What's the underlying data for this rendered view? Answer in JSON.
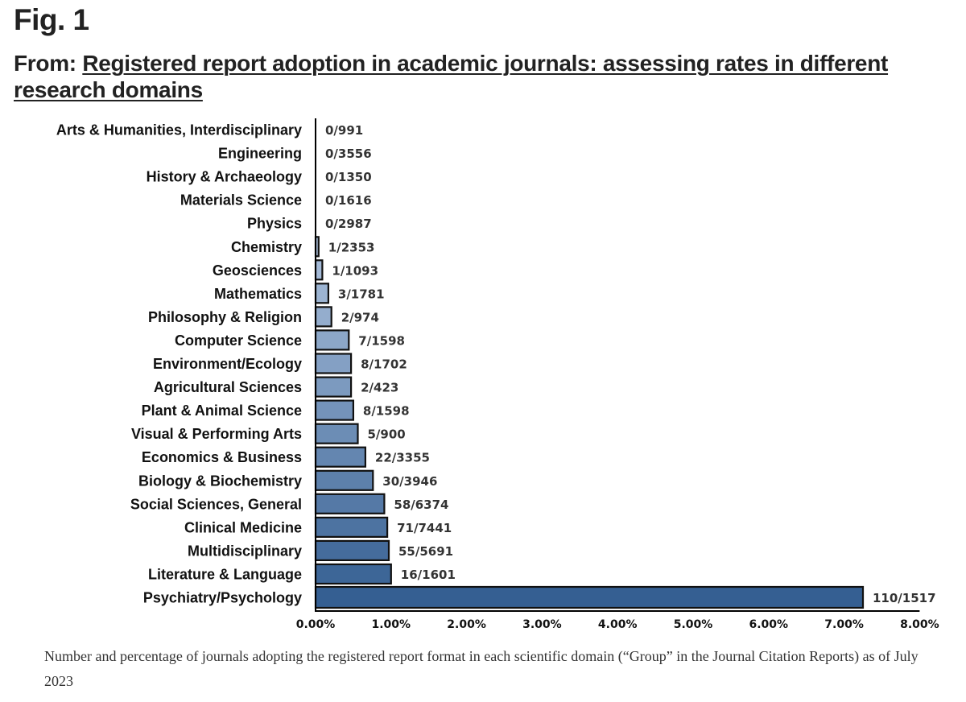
{
  "figure": {
    "label": "Fig. 1",
    "from_prefix": "From: ",
    "article_title": "Registered report adoption in academic journals: assessing rates in different research domains",
    "caption": "Number and percentage of journals adopting the registered report format in each scientific domain (“Group” in the Journal Citation Reports) as of July 2023"
  },
  "chart_data": {
    "type": "bar",
    "orientation": "horizontal",
    "title": "",
    "xlabel": "",
    "ylabel": "",
    "xlim": [
      0,
      8
    ],
    "x_ticks": [
      "0.00%",
      "1.00%",
      "2.00%",
      "3.00%",
      "4.00%",
      "5.00%",
      "6.00%",
      "7.00%",
      "8.00%"
    ],
    "categories": [
      "Arts & Humanities, Interdisciplinary",
      "Engineering",
      "History & Archaeology",
      "Materials Science",
      "Physics",
      "Chemistry",
      "Geosciences",
      "Mathematics",
      "Philosophy & Religion",
      "Computer Science",
      "Environment/Ecology",
      "Agricultural Sciences",
      "Plant & Animal Science",
      "Visual & Performing Arts",
      "Economics & Business",
      "Biology & Biochemistry",
      "Social Sciences, General",
      "Clinical Medicine",
      "Multidisciplinary",
      "Literature & Language",
      "Psychiatry/Psychology"
    ],
    "values": [
      0.0,
      0.0,
      0.0,
      0.0,
      0.0,
      0.04,
      0.09,
      0.17,
      0.21,
      0.44,
      0.47,
      0.47,
      0.5,
      0.56,
      0.66,
      0.76,
      0.91,
      0.95,
      0.97,
      1.0,
      7.25
    ],
    "data_labels": [
      "0/991",
      "0/3556",
      "0/1350",
      "0/1616",
      "0/2987",
      "1/2353",
      "1/1093",
      "3/1781",
      "2/974",
      "7/1598",
      "8/1702",
      "2/423",
      "8/1598",
      "5/900",
      "22/3355",
      "30/3946",
      "58/6374",
      "71/7441",
      "55/5691",
      "16/1601",
      "110/1517"
    ],
    "grid": false,
    "legend": "none",
    "colors": {
      "bar_light": "#d3e1f5",
      "bar_dark": "#355f92",
      "bar_outline": "#111111",
      "axis": "#000000"
    }
  }
}
